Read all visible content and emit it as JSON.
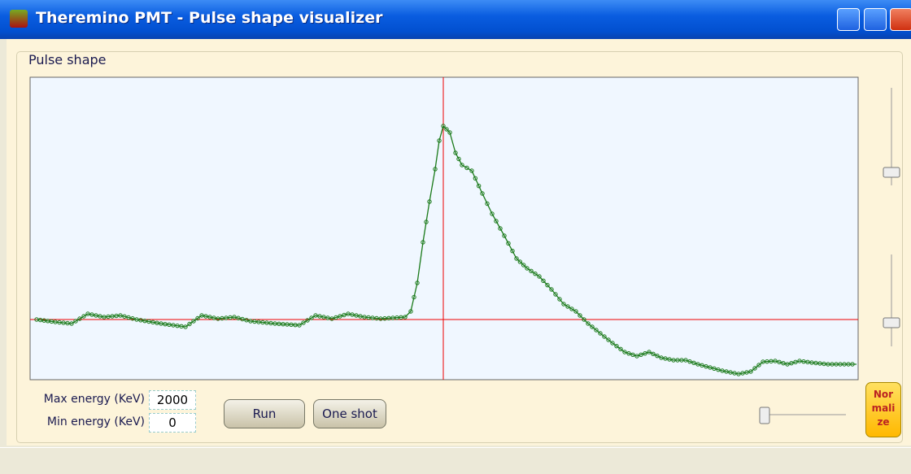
{
  "window": {
    "title": "Theremino PMT - Pulse shape visualizer"
  },
  "group": {
    "label": "Pulse shape"
  },
  "controls": {
    "max_energy": {
      "label": "Max energy (KeV)",
      "value": "2000"
    },
    "min_energy": {
      "label": "Min energy (KeV)",
      "value": "0"
    },
    "run": "Run",
    "one_shot": "One shot",
    "normalize": [
      "Nor",
      "mali",
      "ze"
    ]
  }
}
